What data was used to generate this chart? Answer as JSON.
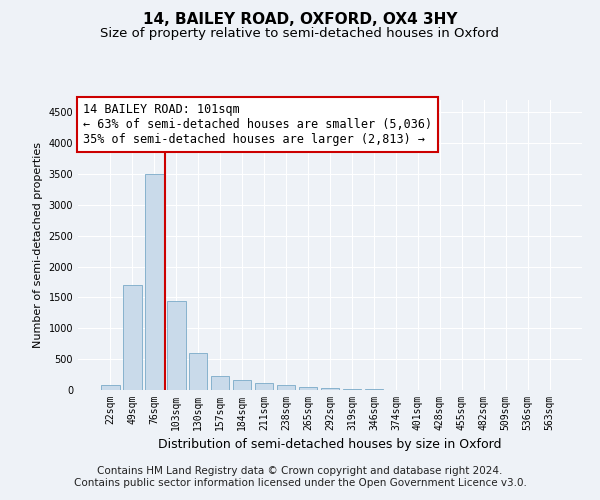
{
  "title": "14, BAILEY ROAD, OXFORD, OX4 3HY",
  "subtitle": "Size of property relative to semi-detached houses in Oxford",
  "xlabel": "Distribution of semi-detached houses by size in Oxford",
  "ylabel": "Number of semi-detached properties",
  "bar_color": "#c9daea",
  "bar_edge_color": "#7aaac8",
  "vline_color": "#cc0000",
  "vline_x_index": 3,
  "annotation_text": "14 BAILEY ROAD: 101sqm\n← 63% of semi-detached houses are smaller (5,036)\n35% of semi-detached houses are larger (2,813) →",
  "annotation_box_facecolor": "#ffffff",
  "annotation_box_edgecolor": "#cc0000",
  "categories": [
    "22sqm",
    "49sqm",
    "76sqm",
    "103sqm",
    "130sqm",
    "157sqm",
    "184sqm",
    "211sqm",
    "238sqm",
    "265sqm",
    "292sqm",
    "319sqm",
    "346sqm",
    "374sqm",
    "401sqm",
    "428sqm",
    "455sqm",
    "482sqm",
    "509sqm",
    "536sqm",
    "563sqm"
  ],
  "values": [
    75,
    1700,
    3500,
    1450,
    600,
    230,
    155,
    110,
    85,
    50,
    30,
    20,
    10,
    5,
    0,
    0,
    0,
    0,
    0,
    0,
    0
  ],
  "ylim": [
    0,
    4700
  ],
  "yticks": [
    0,
    500,
    1000,
    1500,
    2000,
    2500,
    3000,
    3500,
    4000,
    4500
  ],
  "background_color": "#eef2f7",
  "plot_bg_color": "#eef2f7",
  "grid_color": "#ffffff",
  "footer_text": "Contains HM Land Registry data © Crown copyright and database right 2024.\nContains public sector information licensed under the Open Government Licence v3.0.",
  "title_fontsize": 11,
  "subtitle_fontsize": 9.5,
  "ylabel_fontsize": 8,
  "xlabel_fontsize": 9,
  "tick_fontsize": 7,
  "footer_fontsize": 7.5,
  "annotation_fontsize": 8.5
}
